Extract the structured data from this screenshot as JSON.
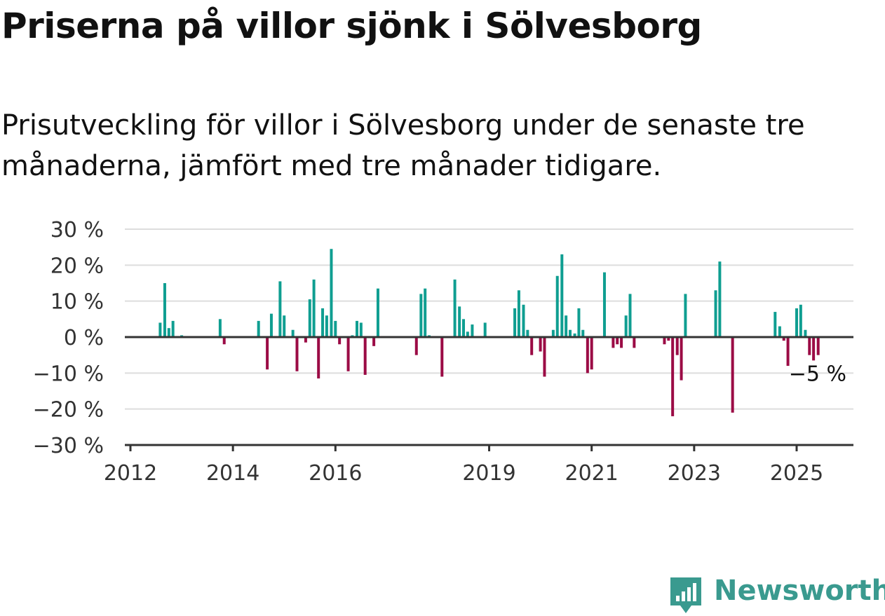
{
  "title": "Priserna på villor sjönk i Sölvesborg",
  "subtitle": "Prisutveckling för villor i Sölvesborg under de senaste tre månaderna, jämfört med tre månader tidigare.",
  "brand": {
    "name": "Newsworthy",
    "color": "#3a9a8f",
    "icon": "newsworthy-bar-chart-icon"
  },
  "colors": {
    "positive": "#0f9e91",
    "negative": "#9b0b45",
    "grid": "#dddddd",
    "axis": "#333333"
  },
  "chart_data": {
    "type": "bar",
    "unit": "%",
    "ylim": [
      -30,
      30
    ],
    "yticks": [
      30,
      20,
      10,
      0,
      -10,
      -20,
      -30
    ],
    "ytick_labels": [
      "30 %",
      "20 %",
      "10 %",
      "0 %",
      "−10 %",
      "−20 %",
      "−30 %"
    ],
    "xlim": [
      2012.0,
      2026.13
    ],
    "xticks": [
      2012,
      2014,
      2016,
      2019,
      2021,
      2023,
      2025
    ],
    "xtick_labels": [
      "2012",
      "2014",
      "2016",
      "2019",
      "2021",
      "2023",
      "2025"
    ],
    "grid": true,
    "end_label": "−5 %",
    "x": [
      2012.58,
      2012.67,
      2012.75,
      2012.83,
      2013.0,
      2013.75,
      2013.83,
      2014.5,
      2014.67,
      2014.75,
      2014.92,
      2015.0,
      2015.17,
      2015.25,
      2015.42,
      2015.5,
      2015.58,
      2015.67,
      2015.75,
      2015.83,
      2015.92,
      2016.0,
      2016.08,
      2016.25,
      2016.33,
      2016.42,
      2016.5,
      2016.58,
      2016.75,
      2016.83,
      2017.58,
      2017.67,
      2017.75,
      2017.83,
      2018.08,
      2018.33,
      2018.42,
      2018.5,
      2018.58,
      2018.67,
      2018.92,
      2019.5,
      2019.58,
      2019.67,
      2019.75,
      2019.83,
      2020.0,
      2020.08,
      2020.25,
      2020.33,
      2020.42,
      2020.5,
      2020.58,
      2020.67,
      2020.75,
      2020.83,
      2020.92,
      2021.0,
      2021.25,
      2021.42,
      2021.5,
      2021.58,
      2021.67,
      2021.75,
      2021.83,
      2022.42,
      2022.5,
      2022.58,
      2022.67,
      2022.75,
      2022.83,
      2023.42,
      2023.5,
      2023.75,
      2024.58,
      2024.67,
      2024.75,
      2024.83,
      2025.0,
      2025.08,
      2025.17,
      2025.25,
      2025.33,
      2025.42
    ],
    "values": [
      4,
      15,
      2.5,
      4.5,
      0.5,
      5,
      -2,
      4.5,
      -9,
      6.5,
      15.5,
      6,
      2,
      -9.5,
      -1.5,
      10.5,
      16,
      -11.5,
      8,
      6,
      24.5,
      4.5,
      -2,
      -9.5,
      0.5,
      4.5,
      4,
      -10.5,
      -2.5,
      13.5,
      -5,
      12,
      13.5,
      0.5,
      -11,
      16,
      8.5,
      5,
      1.5,
      3.5,
      4,
      8,
      13,
      9,
      2,
      -5,
      -4,
      -11,
      2,
      17,
      23,
      6,
      2,
      1,
      8,
      2,
      -10,
      -9,
      18,
      -3,
      -2,
      -3,
      6,
      12,
      -3,
      -2,
      -1,
      -22,
      -5,
      -12,
      12,
      13,
      21,
      -21,
      7,
      3,
      -1,
      -8,
      8,
      9,
      2,
      -5,
      -6.5,
      -5
    ]
  }
}
